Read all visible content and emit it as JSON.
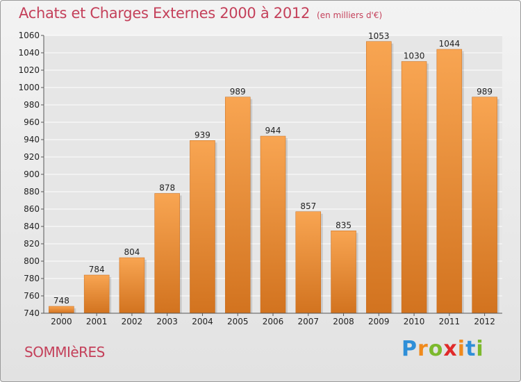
{
  "header": {
    "title": "Achats et Charges Externes 2000 à 2012",
    "unit": "(en milliers d'€)"
  },
  "footer": {
    "commune": "SOMMIèRES",
    "logo_text": "Proxiti"
  },
  "colors": {
    "bar_top": "#f8a552",
    "bar_bottom": "#d2731f",
    "title": "#c4405a",
    "grid": "#ffffff",
    "logo_letters": [
      "#2f8fd8",
      "#f08a1c",
      "#7cb92d",
      "#e02a2a",
      "#f08a1c",
      "#2f8fd8",
      "#7cb92d"
    ]
  },
  "chart_data": {
    "type": "bar",
    "title": "Achats et Charges Externes 2000 à 2012",
    "subtitle": "(en milliers d'€)",
    "categories": [
      "2000",
      "2001",
      "2002",
      "2003",
      "2004",
      "2005",
      "2006",
      "2007",
      "2008",
      "2009",
      "2010",
      "2011",
      "2012"
    ],
    "values": [
      748,
      784,
      804,
      878,
      939,
      989,
      944,
      857,
      835,
      1053,
      1030,
      1044,
      989
    ],
    "ylim": [
      740,
      1060
    ],
    "yticks": [
      740,
      760,
      780,
      800,
      820,
      840,
      860,
      880,
      900,
      920,
      940,
      960,
      980,
      1000,
      1020,
      1040,
      1060
    ],
    "grid": true,
    "xlabel": "",
    "ylabel": ""
  }
}
